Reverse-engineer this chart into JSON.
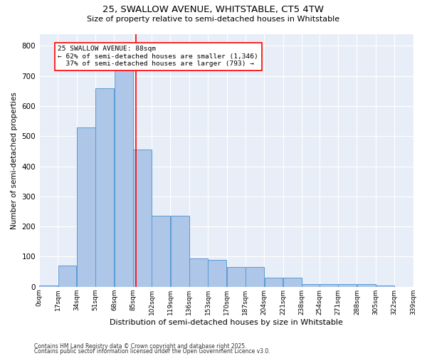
{
  "title_line1": "25, SWALLOW AVENUE, WHITSTABLE, CT5 4TW",
  "title_line2": "Size of property relative to semi-detached houses in Whitstable",
  "xlabel": "Distribution of semi-detached houses by size in Whitstable",
  "ylabel": "Number of semi-detached properties",
  "bin_labels": [
    "0sqm",
    "17sqm",
    "34sqm",
    "51sqm",
    "68sqm",
    "85sqm",
    "102sqm",
    "119sqm",
    "136sqm",
    "153sqm",
    "170sqm",
    "187sqm",
    "204sqm",
    "221sqm",
    "238sqm",
    "254sqm",
    "271sqm",
    "288sqm",
    "305sqm",
    "322sqm",
    "339sqm"
  ],
  "bin_edges": [
    0,
    17,
    34,
    51,
    68,
    85,
    102,
    119,
    136,
    153,
    170,
    187,
    204,
    221,
    238,
    254,
    271,
    288,
    305,
    322,
    339
  ],
  "bar_values": [
    5,
    70,
    530,
    660,
    760,
    455,
    235,
    235,
    95,
    90,
    65,
    65,
    30,
    30,
    10,
    10,
    10,
    10,
    5,
    0,
    0
  ],
  "bar_color": "#aec6e8",
  "bar_edge_color": "#5b9bd5",
  "property_size": 88,
  "vline_color": "red",
  "annotation_text": "25 SWALLOW AVENUE: 88sqm\n← 62% of semi-detached houses are smaller (1,346)\n  37% of semi-detached houses are larger (793) →",
  "annotation_box_color": "white",
  "annotation_box_edge": "red",
  "ylim": [
    0,
    840
  ],
  "yticks": [
    0,
    100,
    200,
    300,
    400,
    500,
    600,
    700,
    800
  ],
  "background_color": "#e8eef7",
  "grid_color": "white",
  "footer_line1": "Contains HM Land Registry data © Crown copyright and database right 2025.",
  "footer_line2": "Contains public sector information licensed under the Open Government Licence v3.0."
}
